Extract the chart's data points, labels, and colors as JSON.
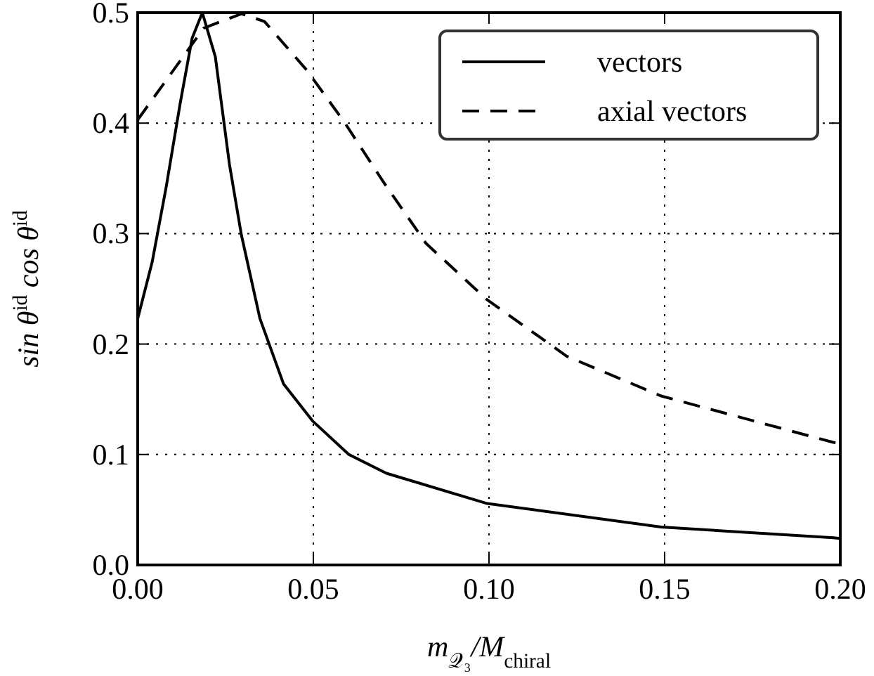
{
  "chart_data": {
    "type": "line",
    "xlabel": "m$_{𝒬₃}$/M$_{chiral}$",
    "ylabel": "sin θ$^{id}$  cos θ$^{id}$",
    "series": [
      {
        "name": "vectors",
        "color": "#000000",
        "line_style": "solid",
        "x": [
          0,
          0.0041,
          0.0081,
          0.0121,
          0.0155,
          0.0184,
          0.0221,
          0.0261,
          0.0295,
          0.0348,
          0.0415,
          0.0499,
          0.0601,
          0.0708,
          0.0995,
          0.149,
          0.198,
          0.2
        ],
        "values": [
          0.223,
          0.274,
          0.342,
          0.418,
          0.477,
          0.5,
          0.46,
          0.363,
          0.299,
          0.223,
          0.164,
          0.13,
          0.1,
          0.083,
          0.0556,
          0.0344,
          0.0246,
          0.024
        ]
      },
      {
        "name": "axial vectors",
        "color": "#000000",
        "line_style": "dashed",
        "x": [
          0,
          0.0188,
          0.0295,
          0.0361,
          0.0481,
          0.0588,
          0.0701,
          0.0821,
          0.0995,
          0.1221,
          0.149,
          0.198,
          0.2
        ],
        "values": [
          0.403,
          0.486,
          0.499,
          0.492,
          0.448,
          0.401,
          0.346,
          0.291,
          0.24,
          0.189,
          0.153,
          0.111,
          0.11
        ]
      }
    ],
    "xlim": [
      0,
      0.2
    ],
    "ylim": [
      0,
      0.5
    ],
    "xticks": [
      {
        "value": 0,
        "label": "0.00"
      },
      {
        "value": 0.05,
        "label": "0.05"
      },
      {
        "value": 0.1,
        "label": "0.10"
      },
      {
        "value": 0.15,
        "label": "0.15"
      },
      {
        "value": 0.2,
        "label": "0.20"
      }
    ],
    "yticks": [
      {
        "value": 0,
        "label": "0.0"
      },
      {
        "value": 0.1,
        "label": "0.1"
      },
      {
        "value": 0.2,
        "label": "0.2"
      },
      {
        "value": 0.3,
        "label": "0.3"
      },
      {
        "value": 0.4,
        "label": "0.4"
      },
      {
        "value": 0.5,
        "label": "0.5"
      }
    ],
    "grid": true,
    "legend": "top right",
    "marker": "none"
  }
}
